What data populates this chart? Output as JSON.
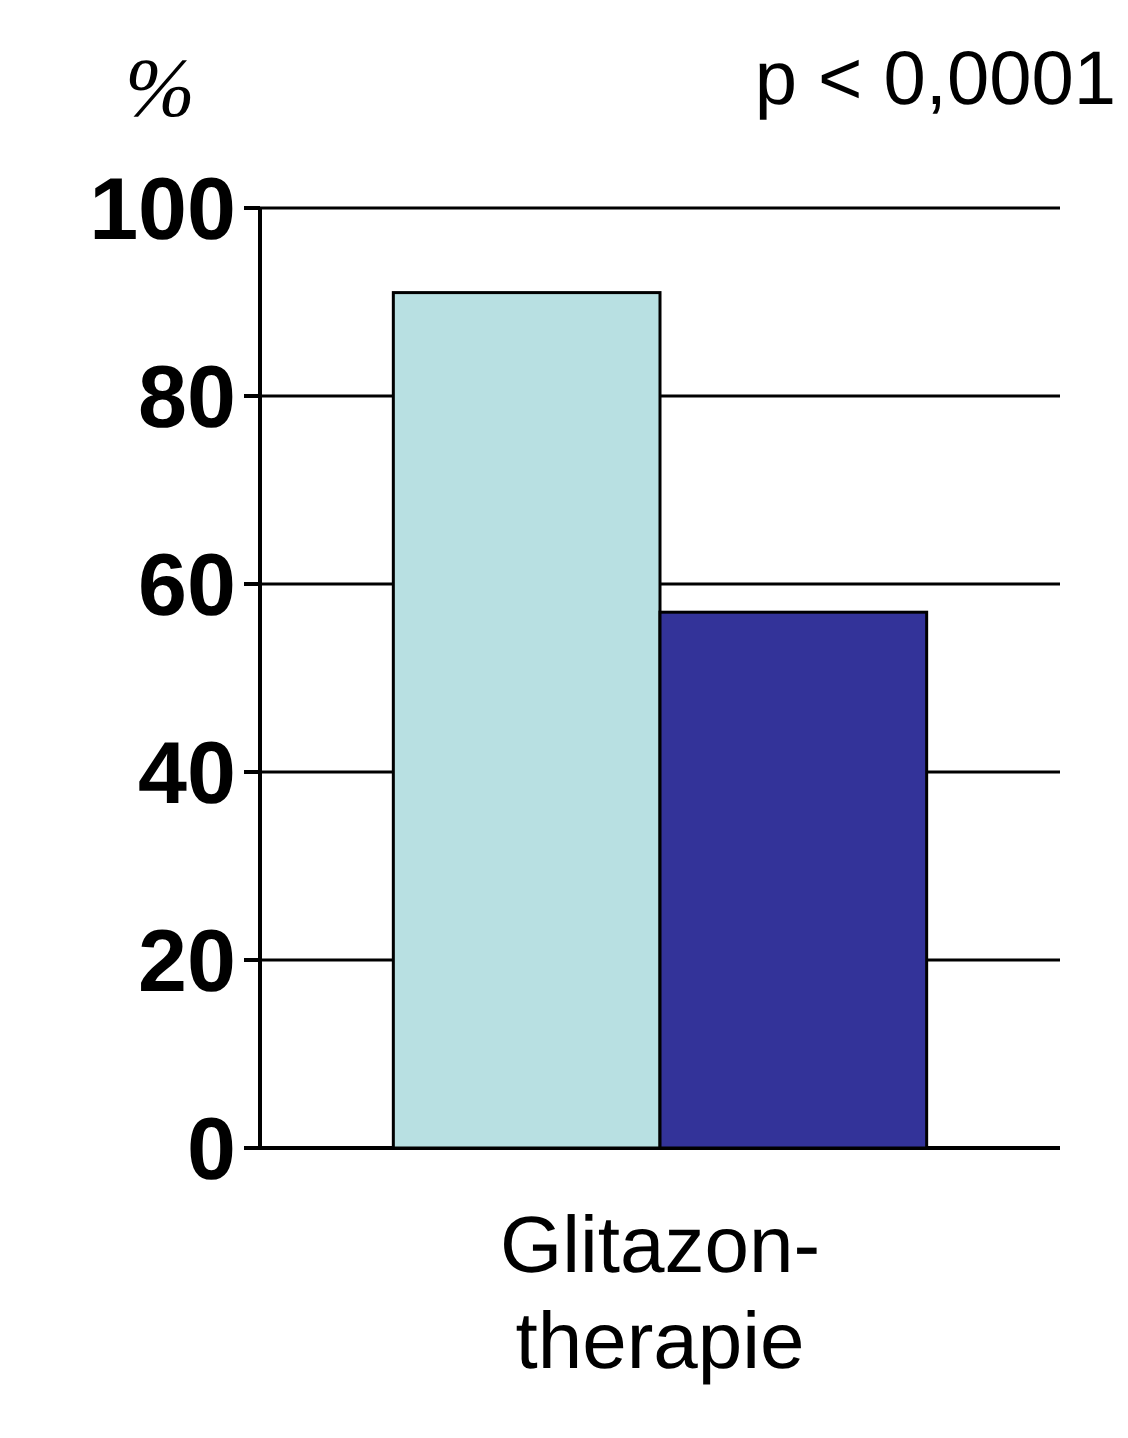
{
  "chart_data": {
    "type": "bar",
    "ylabel": "%",
    "annotations": [
      "p < 0,0001"
    ],
    "categories": [
      "Glitazon-therapie"
    ],
    "series": [
      {
        "color": "#b8e0e2",
        "values": [
          91
        ]
      },
      {
        "color": "#333399",
        "values": [
          57
        ]
      }
    ],
    "ylim": [
      0,
      100
    ],
    "yticks": [
      0,
      20,
      40,
      60,
      80,
      100
    ],
    "grid": "y"
  }
}
